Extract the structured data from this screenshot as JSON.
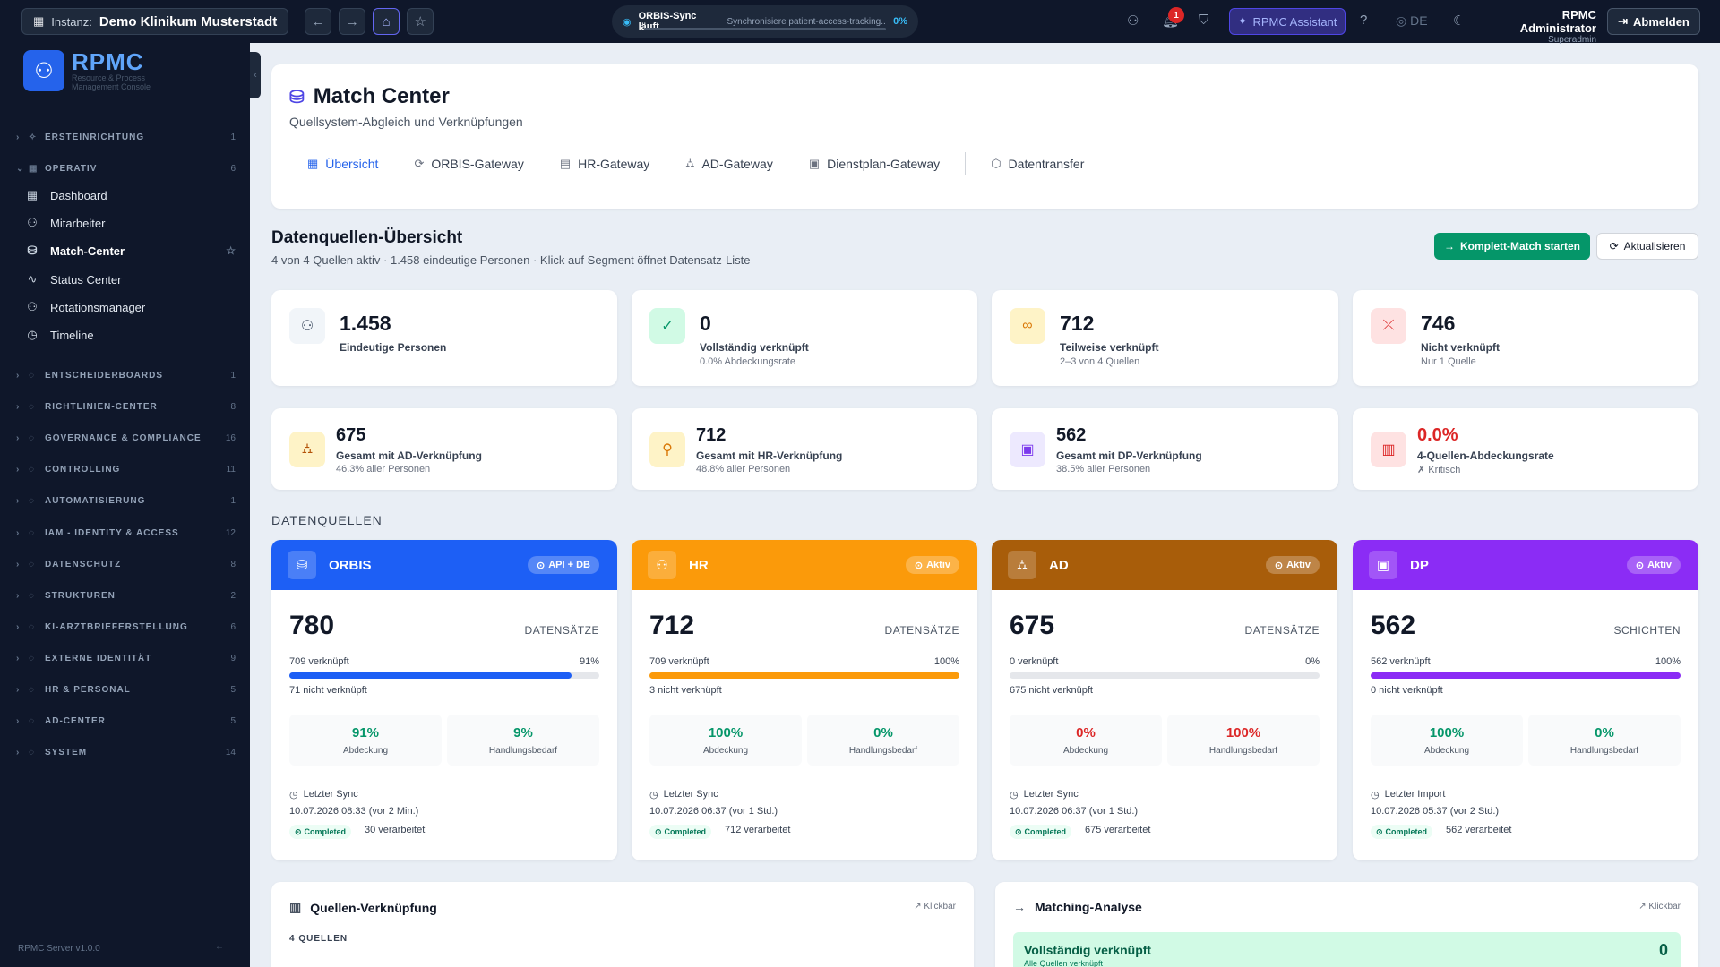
{
  "topbar": {
    "instance_label": "Instanz:",
    "instance_name": "Demo Klinikum Musterstadt",
    "sync_title": "ORBIS-Sync läuft",
    "sync_status": "Synchronisiere patient-access-tracking...",
    "sync_pct": "0%",
    "sync_progress": 0,
    "notification_count": "1",
    "assistant": "RPMC Assistant",
    "language": "DE",
    "user_name": "RPMC Administrator",
    "user_role": "Superadmin",
    "logout": "Abmelden"
  },
  "sidebar": {
    "logo_text": "RPMC",
    "logo_sub1": "Resource & Process",
    "logo_sub2": "Management Console",
    "version": "RPMC Server v1.0.0",
    "sections": [
      {
        "label": "ERSTEINRICHTUNG",
        "count": "1"
      },
      {
        "label": "OPERATIV",
        "count": "6"
      }
    ],
    "items": [
      {
        "label": "Dashboard",
        "icon": "dashboard-icon"
      },
      {
        "label": "Mitarbeiter",
        "icon": "users-icon"
      },
      {
        "label": "Match-Center",
        "icon": "database-icon"
      },
      {
        "label": "Status Center",
        "icon": "activity-icon"
      },
      {
        "label": "Rotationsmanager",
        "icon": "users-icon"
      },
      {
        "label": "Timeline",
        "icon": "clock-icon"
      }
    ],
    "sections2": [
      {
        "label": "ENTSCHEIDERBOARDS",
        "count": "1"
      },
      {
        "label": "RICHTLINIEN-CENTER",
        "count": "8"
      },
      {
        "label": "GOVERNANCE & COMPLIANCE",
        "count": "16"
      },
      {
        "label": "CONTROLLING",
        "count": "11"
      },
      {
        "label": "AUTOMATISIERUNG",
        "count": "1"
      },
      {
        "label": "IAM - IDENTITY & ACCESS",
        "count": "12"
      },
      {
        "label": "DATENSCHUTZ",
        "count": "8"
      },
      {
        "label": "STRUKTUREN",
        "count": "2"
      },
      {
        "label": "KI-ARZTBRIEFERSTELLUNG",
        "count": "6"
      },
      {
        "label": "EXTERNE IDENTITÄT",
        "count": "9"
      },
      {
        "label": "HR & PERSONAL",
        "count": "5"
      },
      {
        "label": "AD-CENTER",
        "count": "5"
      },
      {
        "label": "SYSTEM",
        "count": "14"
      }
    ]
  },
  "header": {
    "title": "Match Center",
    "subtitle": "Quellsystem-Abgleich und Verknüpfungen",
    "tabs": [
      "Übersicht",
      "ORBIS-Gateway",
      "HR-Gateway",
      "AD-Gateway",
      "Dienstplan-Gateway",
      "Datentransfer"
    ]
  },
  "overview": {
    "title": "Datenquellen-Übersicht",
    "subtitle": "4 von 4 Quellen aktiv · 1.458 eindeutige Personen · Klick auf Segment öffnet Datensatz-Liste",
    "btn_match": "Komplett-Match starten",
    "btn_refresh": "Aktualisieren"
  },
  "stats": [
    {
      "value": "1.458",
      "label": "Eindeutige Personen",
      "sub": ""
    },
    {
      "value": "0",
      "label": "Vollständig verknüpft",
      "sub": "0.0% Abdeckungsrate"
    },
    {
      "value": "712",
      "label": "Teilweise verknüpft",
      "sub": "2–3 von 4 Quellen"
    },
    {
      "value": "746",
      "label": "Nicht verknüpft",
      "sub": "Nur 1 Quelle"
    }
  ],
  "stats2": [
    {
      "value": "675",
      "label": "Gesamt mit AD-Verknüpfung",
      "sub": "46.3% aller Personen"
    },
    {
      "value": "712",
      "label": "Gesamt mit HR-Verknüpfung",
      "sub": "48.8% aller Personen"
    },
    {
      "value": "562",
      "label": "Gesamt mit DP-Verknüpfung",
      "sub": "38.5% aller Personen"
    },
    {
      "value": "0.0%",
      "label": "4-Quellen-Abdeckungsrate",
      "sub": "✗ Kritisch"
    }
  ],
  "sources_title": "DATENQUELLEN",
  "sources": [
    {
      "name": "ORBIS",
      "badge": "API + DB",
      "count": "780",
      "unit": "DATENSÄTZE",
      "linked": "709 verknüpft",
      "pct": "91%",
      "progress": 0.91,
      "unlinked": "71 nicht verknüpft",
      "coverage": "91%",
      "coverage_label": "Abdeckung",
      "need": "9%",
      "need_label": "Handlungsbedarf",
      "sync_label": "Letzter Sync",
      "sync_date": "10.07.2026 08:33 (vor 2 Min.)",
      "status": "Completed",
      "processed": "30 verarbeitet",
      "color": "#1d5ff5"
    },
    {
      "name": "HR",
      "badge": "Aktiv",
      "count": "712",
      "unit": "DATENSÄTZE",
      "linked": "709 verknüpft",
      "pct": "100%",
      "progress": 1.0,
      "unlinked": "3 nicht verknüpft",
      "coverage": "100%",
      "coverage_label": "Abdeckung",
      "need": "0%",
      "need_label": "Handlungsbedarf",
      "sync_label": "Letzter Sync",
      "sync_date": "10.07.2026 06:37 (vor 1 Std.)",
      "status": "Completed",
      "processed": "712 verarbeitet",
      "color": "#fb9a0a"
    },
    {
      "name": "AD",
      "badge": "Aktiv",
      "count": "675",
      "unit": "DATENSÄTZE",
      "linked": "0 verknüpft",
      "pct": "0%",
      "progress": 0,
      "unlinked": "675 nicht verknüpft",
      "coverage": "0%",
      "coverage_label": "Abdeckung",
      "need": "100%",
      "need_label": "Handlungsbedarf",
      "sync_label": "Letzter Sync",
      "sync_date": "10.07.2026 06:37 (vor 1 Std.)",
      "status": "Completed",
      "processed": "675 verarbeitet",
      "color": "#a85d0a"
    },
    {
      "name": "DP",
      "badge": "Aktiv",
      "count": "562",
      "unit": "SCHICHTEN",
      "linked": "562 verknüpft",
      "pct": "100%",
      "progress": 1.0,
      "unlinked": "0 nicht verknüpft",
      "coverage": "100%",
      "coverage_label": "Abdeckung",
      "need": "0%",
      "need_label": "Handlungsbedarf",
      "sync_label": "Letzter Import",
      "sync_date": "10.07.2026 05:37 (vor 2 Std.)",
      "status": "Completed",
      "processed": "562 verarbeitet",
      "color": "#8b2cf5"
    }
  ],
  "bottom": {
    "left_title": "Quellen-Verknüpfung",
    "left_link": "Klickbar",
    "left_sub": "4 QUELLEN",
    "right_title": "Matching-Analyse",
    "right_link": "Klickbar",
    "right_row_label": "Vollständig verknüpft",
    "right_row_sub": "Alle Quellen verknüpft",
    "right_row_value": "0"
  }
}
